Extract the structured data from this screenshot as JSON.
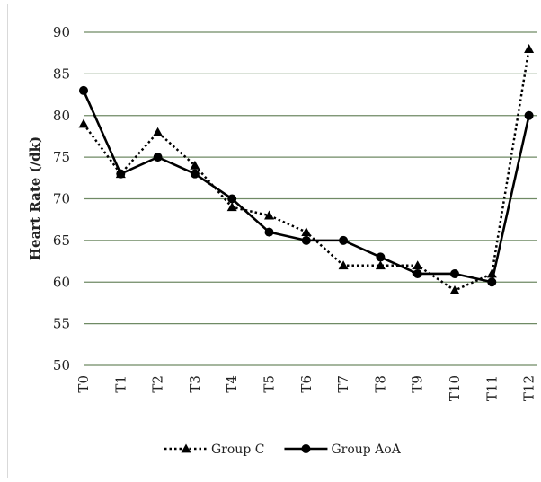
{
  "chart_data": {
    "type": "line",
    "categories": [
      "T0",
      "T1",
      "T2",
      "T3",
      "T4",
      "T5",
      "T6",
      "T7",
      "T8",
      "T9",
      "T10",
      "T11",
      "T12"
    ],
    "ylabel": "Heart Rate (/dk)",
    "xlabel": "",
    "ylim": [
      50,
      90
    ],
    "yticks": [
      50,
      55,
      60,
      65,
      70,
      75,
      80,
      85,
      90
    ],
    "grid": "horizontal",
    "legend_position": "bottom",
    "series": [
      {
        "name": "Group C",
        "line_style": "dotted",
        "marker": "triangle",
        "color": "#000000",
        "values": [
          79,
          73,
          78,
          74,
          69,
          68,
          66,
          62,
          62,
          62,
          59,
          61,
          88
        ]
      },
      {
        "name": "Group AoA",
        "line_style": "solid",
        "marker": "circle",
        "color": "#000000",
        "values": [
          83,
          73,
          75,
          73,
          70,
          66,
          65,
          65,
          63,
          61,
          61,
          60,
          80
        ]
      }
    ]
  }
}
